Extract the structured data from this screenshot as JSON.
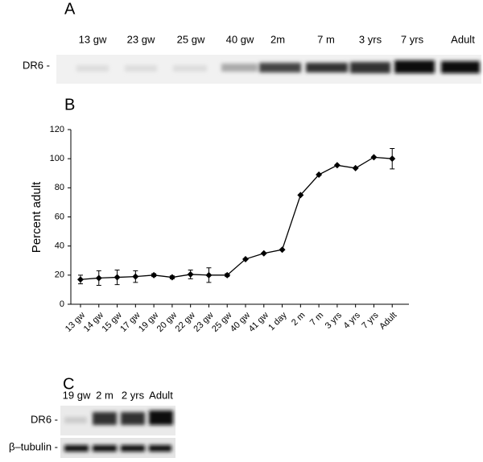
{
  "panels": {
    "A": {
      "label": "A",
      "row_label": "DR6 -",
      "lanes": [
        "13 gw",
        "23 gw",
        "25 gw",
        "40 gw",
        "2m",
        "7 m",
        "3 yrs",
        "7 yrs",
        "Adult"
      ]
    },
    "B": {
      "label": "B"
    },
    "C": {
      "label": "C",
      "lanes": [
        "19 gw",
        "2 m",
        "2 yrs",
        "Adult"
      ],
      "row_labels": [
        "DR6 -",
        "β–tubulin -"
      ]
    }
  },
  "chart_data": {
    "type": "line",
    "y_label": "Percent adult",
    "color": "#000000",
    "categories": [
      "13 gw",
      "14 gw",
      "15 gw",
      "17 gw",
      "19 gw",
      "20 gw",
      "22 gw",
      "23 gw",
      "25 gw",
      "40 gw",
      "41 gw",
      "1 day",
      "2 m",
      "7 m",
      "3 yrs",
      "4 yrs",
      "7 yrs",
      "Adult"
    ],
    "values": [
      17,
      18,
      18.5,
      19,
      20,
      18.5,
      20.5,
      20,
      20,
      31,
      35,
      37.5,
      75,
      89,
      95.5,
      93.5,
      101,
      100
    ],
    "errors": [
      3,
      5,
      5,
      4,
      1,
      1,
      3,
      5,
      1,
      0,
      0,
      0,
      0,
      0,
      0,
      0,
      0,
      7
    ],
    "ylim": [
      0,
      120
    ],
    "yticks": [
      0,
      20,
      40,
      60,
      80,
      100,
      120
    ]
  }
}
